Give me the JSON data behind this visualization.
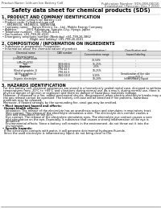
{
  "bg_color": "#ffffff",
  "header_left": "Product Name: Lithium Ion Battery Cell",
  "header_right_line1": "Publication Number: SDS-008-0001E",
  "header_right_line2": "Established / Revision: Dec.7.2010",
  "title": "Safety data sheet for chemical products (SDS)",
  "section1_title": "1. PRODUCT AND COMPANY IDENTIFICATION",
  "section1_lines": [
    "• Product name: Lithium Ion Battery Cell",
    "• Product code: Cylindrical-type cell",
    "     SN18650U, SN18650L, SN18650A",
    "• Company name:    Sanyo Electric Co., Ltd., Mobile Energy Company",
    "• Address:          2001 Kamimura, Sumoto-City, Hyogo, Japan",
    "• Telephone number:  +81-799-26-4111",
    "• Fax number: +81-799-26-4121",
    "• Emergency telephone number (Weekday) +81-799-26-3862",
    "                              (Night and holiday) +81-799-26-4101"
  ],
  "section2_title": "2. COMPOSITION / INFORMATION ON INGREDIENTS",
  "section2_intro": "• Substance or preparation: Preparation",
  "section2_sub": "• Information about the chemical nature of product:",
  "table_header_row": [
    "Chemical name",
    "CAS number",
    "Concentration /\nConcentration range",
    "Classification and\nhazard labeling"
  ],
  "table_subheader": "Several name",
  "table_rows": [
    [
      "Lithium cobalt oxide\n(LiMn2Co2O4)",
      "-",
      "30-50%",
      "-"
    ],
    [
      "Iron",
      "7439-89-6",
      "15-25%",
      "-"
    ],
    [
      "Aluminum",
      "7429-90-5",
      "2-5%",
      "-"
    ],
    [
      "Graphite\n(Kind of graphite-1)\n(Al Mn graphite-1)",
      "7782-42-5\n7782-42-5",
      "10-25%",
      "-"
    ],
    [
      "Copper",
      "7440-50-8",
      "5-15%",
      "Sensitization of the skin\ngroup R43.2"
    ],
    [
      "Organic electrolyte",
      "-",
      "10-20%",
      "Inflammatory liquid"
    ]
  ],
  "section3_title": "3. HAZARDS IDENTIFICATION",
  "section3_para1": "For this battery cell, chemical substances are stored in a hermetically sealed metal case, designed to withstand\ntemperatures from -20°C to +60°C and vibrations during normal use. As a result, during normal use, there is no\nphysical danger of ignition or explosion and there no danger of hazardous materials leakage.",
  "section3_para2": "However, if exposed to a fire, added mechanical shocks, decomposed, when electric-electrolyte breaks may occur,\nthe gas release cannot be operated. The battery cell case will be breached if fire patterns, hazardous\nmaterials may be released.",
  "section3_para3": "Moreover, if heated strongly by the surrounding fire, smol gas may be emitted.",
  "section3_sub1": "• Most important hazard and effects:",
  "section3_human": "Human health effects:",
  "section3_human_lines": [
    "Inhalation: The release of the electrolyte has an anesthesia action and stimulates in respiratory tract.",
    "Skin contact: The release of the electrolyte stimulates a skin. The electrolyte skin contact causes a\nsore and stimulation on the skin.",
    "Eye contact: The release of the electrolyte stimulates eyes. The electrolyte eye contact causes a sore\nand stimulation on the eye. Especially, a substance that causes a strong inflammation of the eye is\ncontained.",
    "Environmental effects: Since a battery cell remains in the environment, do not throw out it into the\nenvironment."
  ],
  "section3_specific": "• Specific hazards:",
  "section3_specific_lines": [
    "If the electrolyte contacts with water, it will generate detrimental hydrogen fluoride.",
    "Since the used electrolyte is inflammatory liquid, do not bring close to fire."
  ],
  "footer_line": true
}
